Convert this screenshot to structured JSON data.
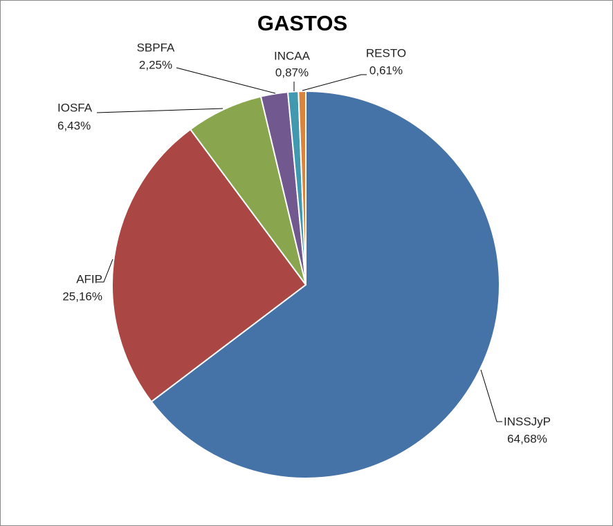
{
  "chart_data": {
    "type": "pie",
    "title": "GASTOS",
    "categories": [
      "INSSJyP",
      "AFIP",
      "IOSFA",
      "SBPFA",
      "INCAA",
      "RESTO"
    ],
    "values": [
      64.68,
      25.16,
      6.43,
      2.25,
      0.87,
      0.61
    ],
    "value_labels": [
      "64,68%",
      "25,16%",
      "6,43%",
      "2,25%",
      "0,87%",
      "0,61%"
    ],
    "colors": [
      "#4572a7",
      "#aa4643",
      "#89a54e",
      "#71588f",
      "#4198af",
      "#db843d"
    ]
  }
}
